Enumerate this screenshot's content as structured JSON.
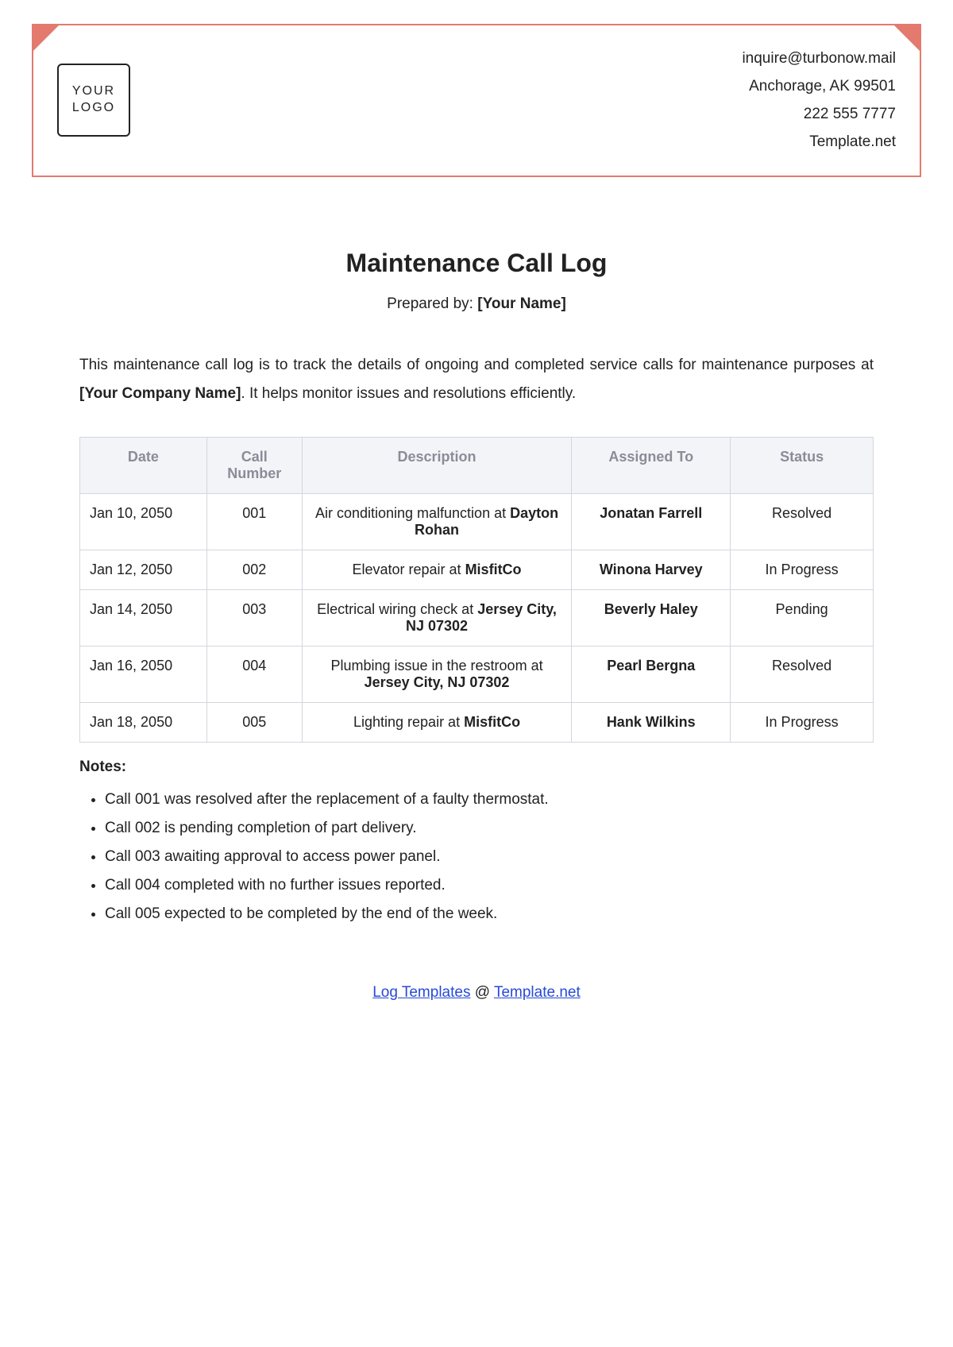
{
  "header": {
    "logo_line1": "YOUR",
    "logo_line2": "LOGO",
    "contact": {
      "email": "inquire@turbonow.mail",
      "address": "Anchorage, AK 99501",
      "phone": "222 555 7777",
      "site": "Template.net"
    }
  },
  "title": "Maintenance Call Log",
  "prepared_label": "Prepared by: ",
  "prepared_value": "[Your Name]",
  "intro_pre": "This maintenance call log is to track the details of ongoing and completed service calls for maintenance purposes at ",
  "intro_bold": "[Your Company Name]",
  "intro_post": ". It helps monitor issues and resolutions efficiently.",
  "table": {
    "columns": [
      "Date",
      "Call Number",
      "Description",
      "Assigned To",
      "Status"
    ],
    "col_widths": [
      "16%",
      "12%",
      "34%",
      "20%",
      "18%"
    ],
    "header_bg": "#f3f4f8",
    "header_color": "#8a8d97",
    "border_color": "#d3d6de",
    "rows": [
      {
        "date": "Jan 10, 2050",
        "num": "001",
        "desc_pre": "Air conditioning malfunction at ",
        "desc_bold": "Dayton Rohan",
        "assigned": "Jonatan Farrell",
        "status": "Resolved"
      },
      {
        "date": "Jan 12, 2050",
        "num": "002",
        "desc_pre": "Elevator repair at ",
        "desc_bold": "MisfitCo",
        "assigned": "Winona Harvey",
        "status": "In Progress"
      },
      {
        "date": "Jan 14, 2050",
        "num": "003",
        "desc_pre": "Electrical wiring check at ",
        "desc_bold": "Jersey City, NJ 07302",
        "assigned": "Beverly Haley",
        "status": "Pending"
      },
      {
        "date": "Jan 16, 2050",
        "num": "004",
        "desc_pre": "Plumbing issue in the restroom at ",
        "desc_bold": "Jersey City, NJ 07302",
        "assigned": "Pearl Bergna",
        "status": "Resolved"
      },
      {
        "date": "Jan 18, 2050",
        "num": "005",
        "desc_pre": "Lighting repair at ",
        "desc_bold": "MisfitCo",
        "assigned": "Hank Wilkins",
        "status": "In Progress"
      }
    ]
  },
  "notes_title": "Notes:",
  "notes": [
    "Call 001 was resolved after the replacement of a faulty thermostat.",
    "Call 002 is pending completion of part delivery.",
    "Call 003 awaiting approval to access power panel.",
    "Call 004 completed with no further issues reported.",
    "Call 005 expected to be completed by the end of the week."
  ],
  "footer": {
    "link1_text": "Log Templates",
    "middle": " @ ",
    "link2_text": "Template.net"
  },
  "colors": {
    "accent": "#e47a6e",
    "link": "#2749d6"
  }
}
